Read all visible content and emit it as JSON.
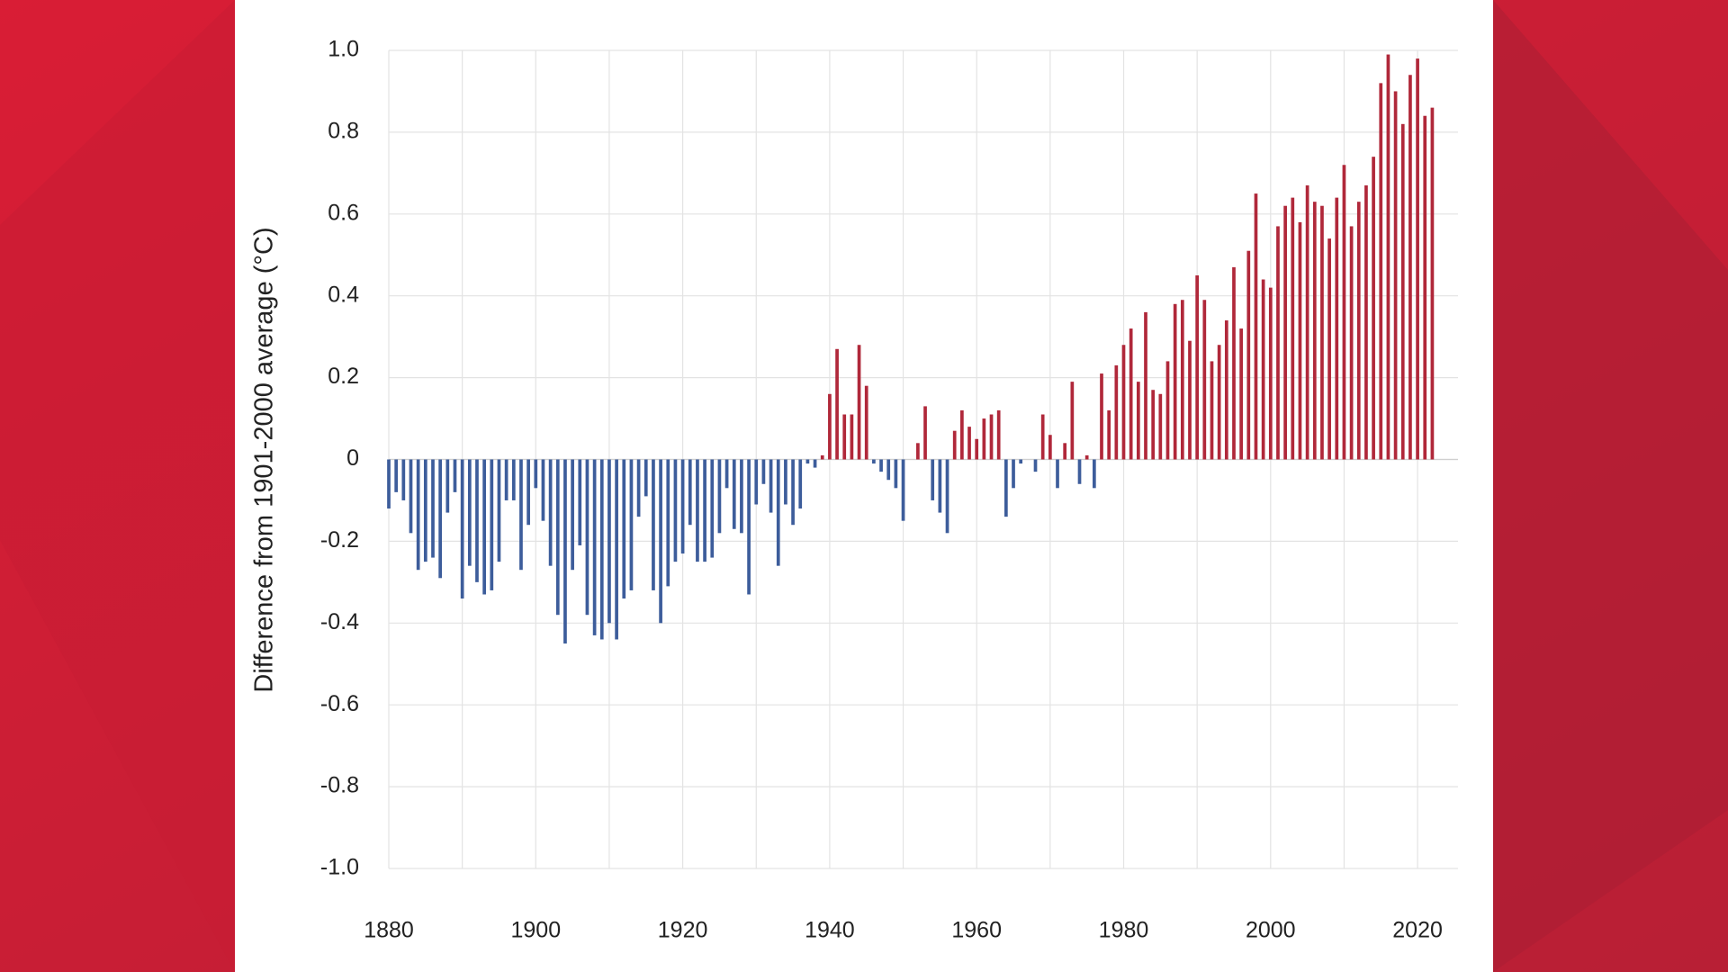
{
  "chart_data": {
    "type": "bar",
    "y_label": "Difference from 1901-2000 average (°C)",
    "x": [
      1880,
      1881,
      1882,
      1883,
      1884,
      1885,
      1886,
      1887,
      1888,
      1889,
      1890,
      1891,
      1892,
      1893,
      1894,
      1895,
      1896,
      1897,
      1898,
      1899,
      1900,
      1901,
      1902,
      1903,
      1904,
      1905,
      1906,
      1907,
      1908,
      1909,
      1910,
      1911,
      1912,
      1913,
      1914,
      1915,
      1916,
      1917,
      1918,
      1919,
      1920,
      1921,
      1922,
      1923,
      1924,
      1925,
      1926,
      1927,
      1928,
      1929,
      1930,
      1931,
      1932,
      1933,
      1934,
      1935,
      1936,
      1937,
      1938,
      1939,
      1940,
      1941,
      1942,
      1943,
      1944,
      1945,
      1946,
      1947,
      1948,
      1949,
      1950,
      1951,
      1952,
      1953,
      1954,
      1955,
      1956,
      1957,
      1958,
      1959,
      1960,
      1961,
      1962,
      1963,
      1964,
      1965,
      1966,
      1967,
      1968,
      1969,
      1970,
      1971,
      1972,
      1973,
      1974,
      1975,
      1976,
      1977,
      1978,
      1979,
      1980,
      1981,
      1982,
      1983,
      1984,
      1985,
      1986,
      1987,
      1988,
      1989,
      1990,
      1991,
      1992,
      1993,
      1994,
      1995,
      1996,
      1997,
      1998,
      1999,
      2000,
      2001,
      2002,
      2003,
      2004,
      2005,
      2006,
      2007,
      2008,
      2009,
      2010,
      2011,
      2012,
      2013,
      2014,
      2015,
      2016,
      2017,
      2018,
      2019,
      2020,
      2021,
      2022
    ],
    "values": [
      -0.12,
      -0.08,
      -0.1,
      -0.18,
      -0.27,
      -0.25,
      -0.24,
      -0.29,
      -0.13,
      -0.08,
      -0.34,
      -0.26,
      -0.3,
      -0.33,
      -0.32,
      -0.25,
      -0.1,
      -0.1,
      -0.27,
      -0.16,
      -0.07,
      -0.15,
      -0.26,
      -0.38,
      -0.45,
      -0.27,
      -0.21,
      -0.38,
      -0.43,
      -0.44,
      -0.4,
      -0.44,
      -0.34,
      -0.32,
      -0.14,
      -0.09,
      -0.32,
      -0.4,
      -0.31,
      -0.25,
      -0.23,
      -0.16,
      -0.25,
      -0.25,
      -0.24,
      -0.18,
      -0.07,
      -0.17,
      -0.18,
      -0.33,
      -0.11,
      -0.06,
      -0.13,
      -0.26,
      -0.11,
      -0.16,
      -0.12,
      -0.01,
      -0.02,
      0.01,
      0.16,
      0.27,
      0.11,
      0.11,
      0.28,
      0.18,
      -0.01,
      -0.03,
      -0.05,
      -0.07,
      -0.15,
      0.0,
      0.04,
      0.13,
      -0.1,
      -0.13,
      -0.18,
      0.07,
      0.12,
      0.08,
      0.05,
      0.1,
      0.11,
      0.12,
      -0.14,
      -0.07,
      -0.01,
      0.0,
      -0.03,
      0.11,
      0.06,
      -0.07,
      0.04,
      0.19,
      -0.06,
      0.01,
      -0.07,
      0.21,
      0.12,
      0.23,
      0.28,
      0.32,
      0.19,
      0.36,
      0.17,
      0.16,
      0.24,
      0.38,
      0.39,
      0.29,
      0.45,
      0.39,
      0.24,
      0.28,
      0.34,
      0.47,
      0.32,
      0.51,
      0.65,
      0.44,
      0.42,
      0.57,
      0.62,
      0.64,
      0.58,
      0.67,
      0.63,
      0.62,
      0.54,
      0.64,
      0.72,
      0.57,
      0.63,
      0.67,
      0.74,
      0.92,
      0.99,
      0.9,
      0.82,
      0.94,
      0.98,
      0.84,
      0.86
    ],
    "positive_color": "#b0283a",
    "negative_color": "#3d5d9b",
    "xlim": [
      1880,
      2025.5
    ],
    "xticks": [
      1880,
      1900,
      1920,
      1940,
      1960,
      1980,
      2000,
      2020
    ],
    "xgrid": [
      1880,
      1890,
      1900,
      1910,
      1920,
      1930,
      1940,
      1950,
      1960,
      1970,
      1980,
      1990,
      2000,
      2010,
      2020
    ],
    "ylim": [
      -1,
      1
    ],
    "yticks": [
      {
        "value": 1,
        "label": "1.0"
      },
      0.8,
      0.6,
      0.4,
      0.2,
      0,
      -0.2,
      -0.4,
      -0.6,
      -0.8,
      {
        "value": -1,
        "label": "-1.0"
      }
    ],
    "grid": true
  }
}
